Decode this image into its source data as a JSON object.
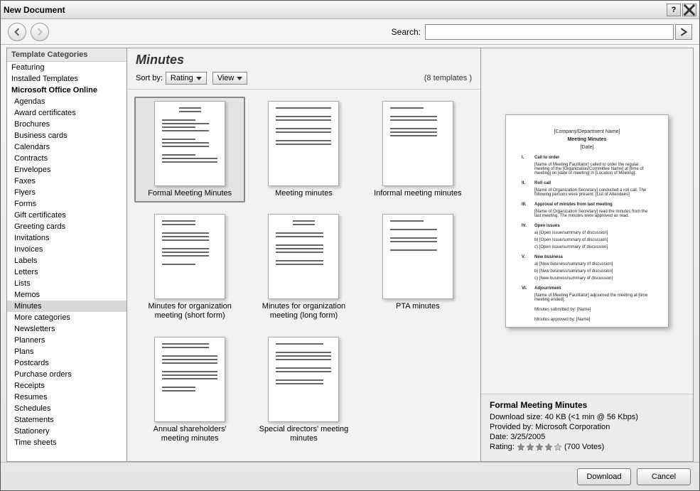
{
  "window": {
    "title": "New Document"
  },
  "nav": {
    "search_label": "Search:",
    "search_value": ""
  },
  "sidebar": {
    "header": "Template Categories",
    "top_items": [
      {
        "label": "Featuring"
      },
      {
        "label": "Installed Templates"
      },
      {
        "label": "Microsoft Office Online",
        "bold": true
      }
    ],
    "items": [
      "Agendas",
      "Award certificates",
      "Brochures",
      "Business cards",
      "Calendars",
      "Contracts",
      "Envelopes",
      "Faxes",
      "Flyers",
      "Forms",
      "Gift certificates",
      "Greeting cards",
      "Invitations",
      "Invoices",
      "Labels",
      "Letters",
      "Lists",
      "Memos",
      "Minutes",
      "More categories",
      "Newsletters",
      "Planners",
      "Plans",
      "Postcards",
      "Purchase orders",
      "Receipts",
      "Resumes",
      "Schedules",
      "Statements",
      "Stationery",
      "Time sheets"
    ],
    "selected": "Minutes"
  },
  "center": {
    "title": "Minutes",
    "sort_label": "Sort by:",
    "sort_value": "Rating",
    "view_label": "View",
    "count_label": "(8 templates )",
    "templates": [
      {
        "label": "Formal Meeting Minutes",
        "selected": true
      },
      {
        "label": "Meeting minutes"
      },
      {
        "label": "Informal meeting minutes"
      },
      {
        "label": "Minutes for organization meeting (short form)"
      },
      {
        "label": "Minutes for organization meeting (long form)"
      },
      {
        "label": "PTA minutes"
      },
      {
        "label": "Annual shareholders' meeting minutes"
      },
      {
        "label": "Special directors' meeting minutes"
      }
    ]
  },
  "preview": {
    "header1": "[Company/Department Name]",
    "header2": "Meeting Minutes",
    "header3": "[Date]",
    "s1_num": "I.",
    "s1_title": "Call to order",
    "s1_body": "[Name of Meeting Facilitator] called to order the regular meeting of the [Organization/Committee Name] at [time of meeting] on [date of meeting] in [Location of Meeting].",
    "s2_num": "II.",
    "s2_title": "Roll call",
    "s2_body": "[Name of Organization Secretary] conducted a roll call. The following persons were present: [List of Attendees]",
    "s3_num": "III.",
    "s3_title": "Approval of minutes from last meeting",
    "s3_body": "[Name of Organization Secretary] read the minutes from the last meeting. The minutes were approved as read.",
    "s4_num": "IV.",
    "s4_title": "Open issues",
    "s4_a": "a)  [Open issue/summary of discussion]",
    "s4_b": "b)  [Open issue/summary of discussion]",
    "s4_c": "c)  [Open issue/summary of discussion]",
    "s5_num": "V.",
    "s5_title": "New business",
    "s5_a": "a)  [New business/summary of discussion]",
    "s5_b": "b)  [New business/summary of discussion]",
    "s5_c": "c)  [New business/summary of discussion]",
    "s6_num": "VI.",
    "s6_title": "Adjournment",
    "s6_body": "[Name of Meeting Facilitator] adjourned the meeting at [time meeting ended].",
    "sub_by": "Minutes submitted by:  [Name]",
    "app_by": "Minutes approved by:  [Name]"
  },
  "details": {
    "title": "Formal Meeting Minutes",
    "size_label": "Download size:",
    "size_value": "40 KB (<1 min @ 56 Kbps)",
    "provider_label": "Provided by:",
    "provider_value": "Microsoft Corporation",
    "date_label": "Date:",
    "date_value": "3/25/2005",
    "rating_label": "Rating:",
    "votes": "(700 Votes)",
    "stars": 4,
    "star_color": "#888888",
    "star_empty": "#cccccc"
  },
  "footer": {
    "download": "Download",
    "cancel": "Cancel"
  }
}
